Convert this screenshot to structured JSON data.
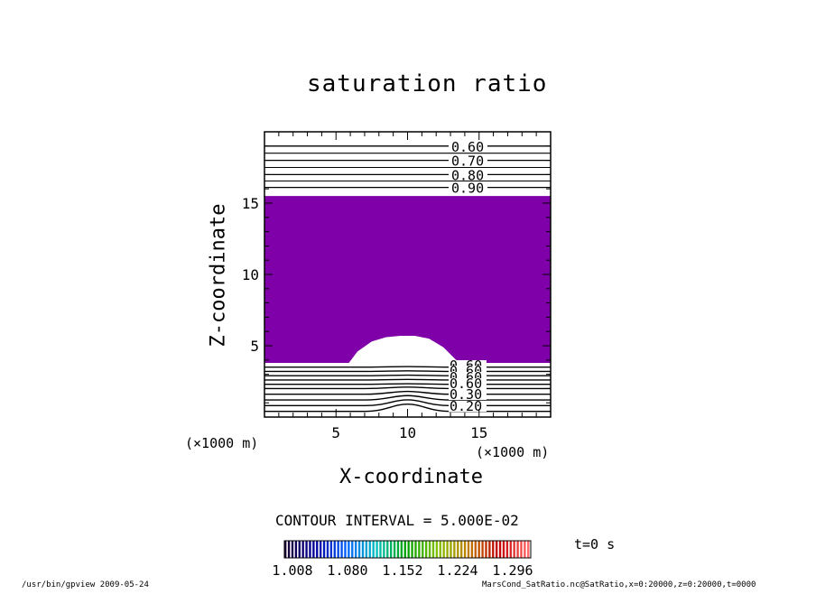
{
  "chart_data": {
    "type": "contour",
    "title": "saturation ratio",
    "xlabel": "X-coordinate",
    "ylabel": "Z-coordinate",
    "x_unit": "(×1000 m)",
    "y_unit": "(×1000 m)",
    "xlim": [
      0,
      20
    ],
    "ylim": [
      0,
      20
    ],
    "x_ticks": [
      5,
      10,
      15
    ],
    "y_ticks": [
      5,
      10,
      15
    ],
    "contour_interval_text": "CONTOUR INTERVAL = 5.000E-02",
    "fill_color": "#7f00a8",
    "fill_region": {
      "z_bottom": 3.8,
      "z_top": 15.5,
      "mound_x": [
        5.9,
        6.5,
        7.5,
        8.5,
        9.5,
        10.5,
        11.5,
        12.5,
        13.6
      ],
      "mound_z": [
        3.8,
        4.6,
        5.3,
        5.6,
        5.7,
        5.7,
        5.5,
        4.9,
        3.8
      ]
    },
    "upper_contours": [
      {
        "level": "0.60",
        "z": 19.0
      },
      {
        "level": "0.70",
        "z": 18.0
      },
      {
        "level": "0.80",
        "z": 17.0
      },
      {
        "level": "0.90",
        "z": 16.1
      }
    ],
    "lower_contour_labels": [
      "0.60",
      "0.20",
      "0.30"
    ],
    "lower_contour_z": [
      3.5,
      3.2,
      2.9,
      2.6,
      2.3,
      2.0,
      1.6,
      1.2,
      0.8,
      0.4
    ],
    "colorbar": {
      "ticks": [
        "1.008",
        "1.080",
        "1.152",
        "1.224",
        "1.296"
      ],
      "colors": [
        "#1a0033",
        "#0000a0",
        "#0060ff",
        "#00c0c0",
        "#00a000",
        "#80c000",
        "#c08000",
        "#c00000",
        "#ff6060"
      ]
    },
    "time_label": "t=0 s"
  },
  "footer": {
    "left": "/usr/bin/gpview   2009-05-24",
    "right": "MarsCond_SatRatio.nc@SatRatio,x=0:20000,z=0:20000,t=0000"
  }
}
